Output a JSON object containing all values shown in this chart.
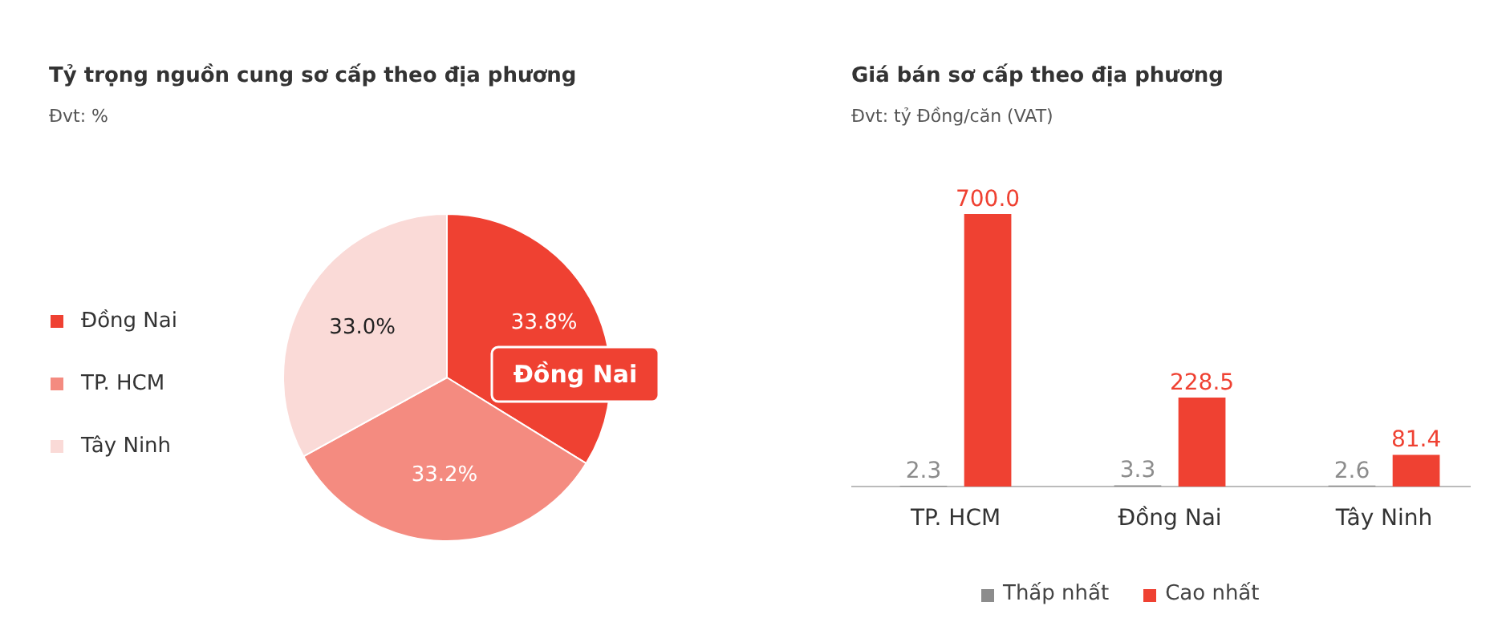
{
  "chart_data": [
    {
      "type": "pie",
      "title": "Tỷ trọng nguồn cung sơ cấp theo địa phương",
      "subtitle": "Đvt: %",
      "categories": [
        "Đồng Nai",
        "TP. HCM",
        "Tây Ninh"
      ],
      "values": [
        33.8,
        33.2,
        33.0
      ],
      "value_labels": [
        "33.8%",
        "33.2%",
        "33.0%"
      ],
      "colors": [
        "#ef4132",
        "#f48b80",
        "#fadad7"
      ],
      "legend": "left",
      "annotations": [
        "Đồng Nai"
      ]
    },
    {
      "type": "bar",
      "title": "Giá bán sơ cấp theo địa phương",
      "subtitle": "Đvt: tỷ Đồng/căn (VAT)",
      "categories": [
        "TP. HCM",
        "Đồng Nai",
        "Tây Ninh"
      ],
      "series": [
        {
          "name": "Thấp nhất",
          "color": "#8c8c8c",
          "values": [
            2.3,
            3.3,
            2.6
          ],
          "value_labels": [
            "2.3",
            "3.3",
            "2.6"
          ]
        },
        {
          "name": "Cao nhất",
          "color": "#ef4132",
          "values": [
            700.0,
            228.5,
            81.4
          ],
          "value_labels": [
            "700.0",
            "228.5",
            "81.4"
          ]
        }
      ],
      "legend": "bottom",
      "grid": false
    }
  ]
}
